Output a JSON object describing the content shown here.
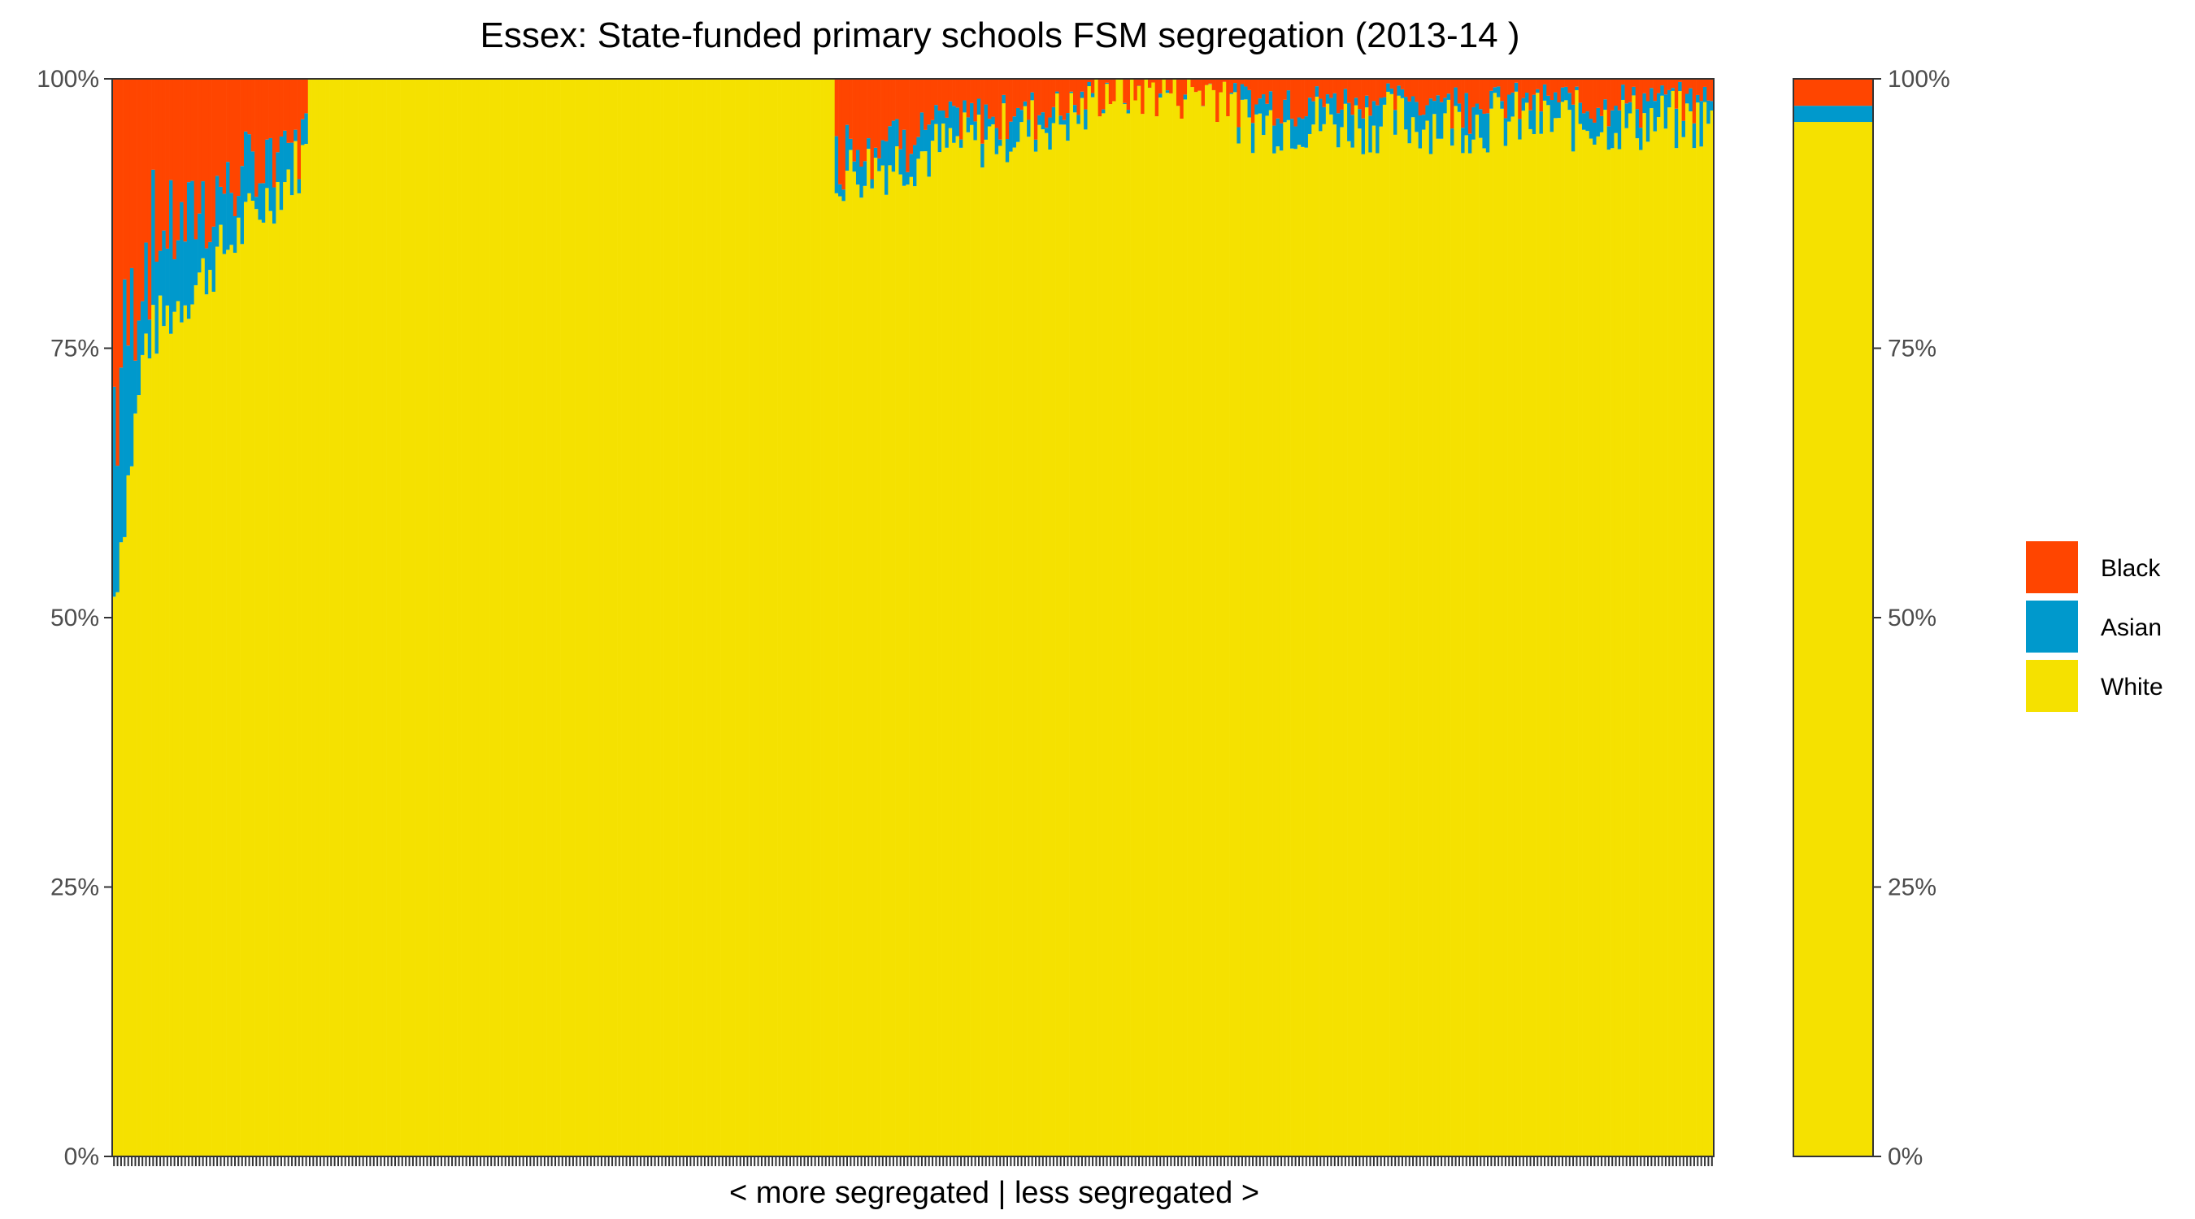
{
  "chart_data": {
    "type": "bar",
    "stacked": true,
    "percent": true,
    "title": "Essex: State-funded primary schools FSM segregation (2013-14 )",
    "xlabel": "< more segregated | less segregated >",
    "ylabel": "",
    "ylim": [
      0,
      100
    ],
    "y_ticks": [
      "0%",
      "25%",
      "50%",
      "75%",
      "100%"
    ],
    "grid": false,
    "legend_position": "right",
    "series": [
      {
        "name": "Black",
        "color": "#FF4500"
      },
      {
        "name": "Asian",
        "color": "#0099CC"
      },
      {
        "name": "White",
        "color": "#F5E100"
      }
    ],
    "school_count": 450,
    "school_segments": [
      {
        "from": 0,
        "to": 10,
        "white_start": 52,
        "white_end": 76,
        "asian_start": 18,
        "asian_end": 8,
        "black_start": 30,
        "black_end": 14
      },
      {
        "from": 10,
        "to": 55,
        "white_start": 76,
        "white_end": 93,
        "asian_start": 8,
        "asian_end": 2,
        "black_start": 14,
        "black_end": 5
      },
      {
        "from": 55,
        "to": 203,
        "white_start": 100,
        "white_end": 100,
        "asian_start": 0,
        "asian_end": 0,
        "black_start": 0,
        "black_end": 0
      },
      {
        "from": 203,
        "to": 275,
        "white_start": 91,
        "white_end": 97,
        "asian_start": 3,
        "asian_end": 1,
        "black_start": 6,
        "black_end": 2
      },
      {
        "from": 275,
        "to": 315,
        "white_start": 99,
        "white_end": 99,
        "asian_start": 0,
        "asian_end": 0,
        "black_start": 1,
        "black_end": 1
      },
      {
        "from": 315,
        "to": 450,
        "white_start": 96,
        "white_end": 96,
        "asian_start": 2,
        "asian_end": 2,
        "black_start": 2,
        "black_end": 2
      }
    ],
    "overall": {
      "Black": 2.5,
      "Asian": 1.5,
      "White": 96
    }
  }
}
